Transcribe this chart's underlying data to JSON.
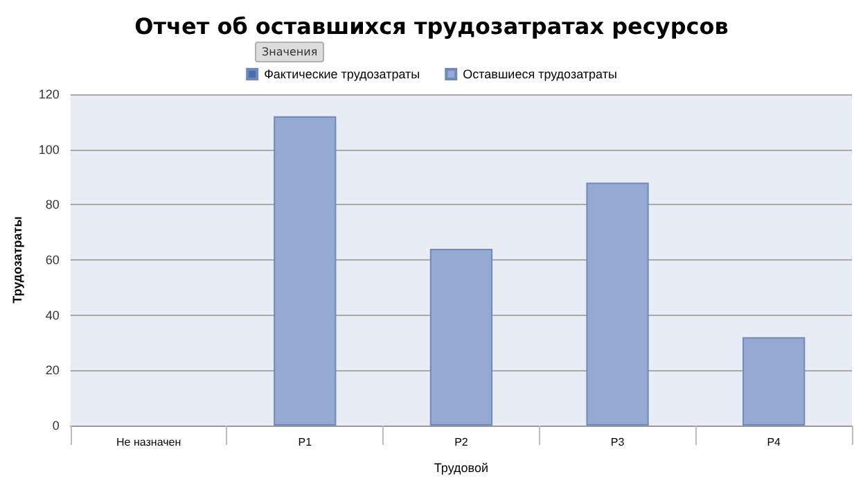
{
  "chart_data": {
    "type": "bar",
    "title": "Отчет об оставшихся трудозатратах ресурсов",
    "legend_title": "Значения",
    "xlabel": "Трудовой",
    "ylabel": "Трудозатраты",
    "categories": [
      "Не назначен",
      "P1",
      "P2",
      "P3",
      "P4"
    ],
    "series": [
      {
        "name": "Фактические трудозатраты",
        "color": "#4a6ea8",
        "values": [
          null,
          null,
          null,
          null,
          null
        ]
      },
      {
        "name": "Оставшиеся трудозатраты",
        "color": "#95a9d2",
        "values": [
          null,
          112,
          64,
          88,
          32
        ]
      }
    ],
    "ylim": [
      0,
      120
    ],
    "yticks": [
      0,
      20,
      40,
      60,
      80,
      100,
      120
    ],
    "grid": "y",
    "legend": "top"
  }
}
